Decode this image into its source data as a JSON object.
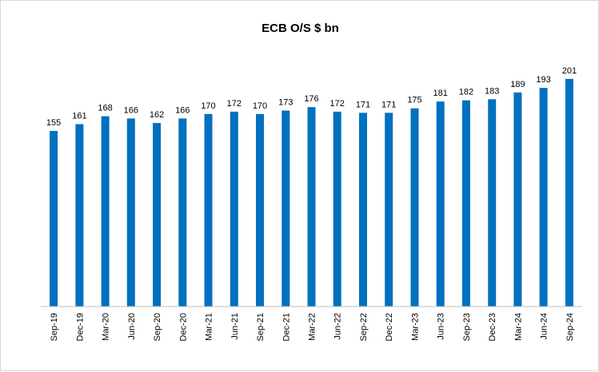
{
  "chart_data": {
    "type": "bar",
    "title": "ECB O/S $ bn",
    "xlabel": "",
    "ylabel": "",
    "ylim": [
      0,
      210
    ],
    "grid": false,
    "bar_color": "#0070C0",
    "categories": [
      "Sep-19",
      "Dec-19",
      "Mar-20",
      "Jun-20",
      "Sep-20",
      "Dec-20",
      "Mar-21",
      "Jun-21",
      "Sep-21",
      "Dec-21",
      "Mar-22",
      "Jun-22",
      "Sep-22",
      "Dec-22",
      "Mar-23",
      "Jun-23",
      "Sep-23",
      "Dec-23",
      "Mar-24",
      "Jun-24",
      "Sep-24"
    ],
    "values": [
      155,
      161,
      168,
      166,
      162,
      166,
      170,
      172,
      170,
      173,
      176,
      172,
      171,
      171,
      175,
      181,
      182,
      183,
      189,
      193,
      201
    ],
    "data_labels": true
  }
}
